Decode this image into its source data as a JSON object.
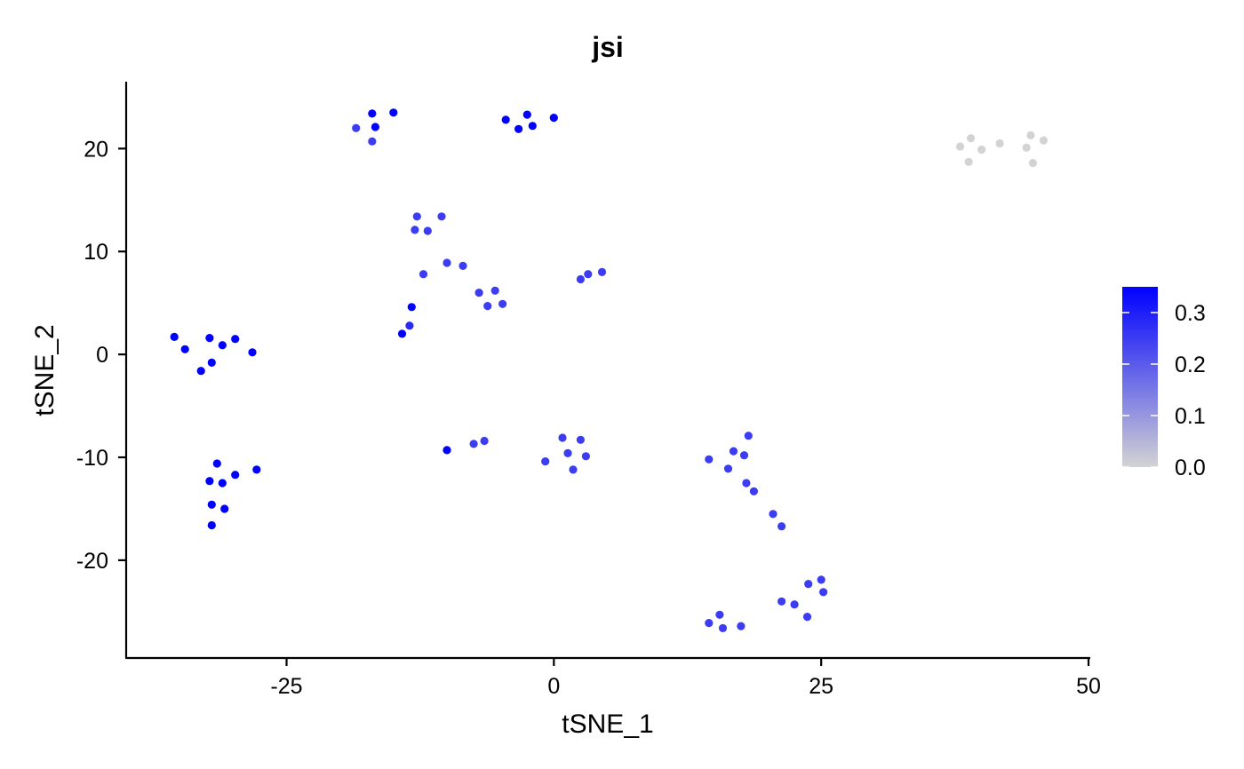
{
  "chart_data": {
    "type": "scatter",
    "title": "jsi",
    "xlabel": "tSNE_1",
    "ylabel": "tSNE_2",
    "xlim": [
      -40,
      50
    ],
    "ylim": [
      -29.5,
      26.5
    ],
    "xticks": [
      -25,
      0,
      25,
      50
    ],
    "yticks": [
      -20,
      -10,
      0,
      10,
      20
    ],
    "xtick_labels": [
      "-25",
      "0",
      "25",
      "50"
    ],
    "ytick_labels": [
      "-20",
      "-10",
      "0",
      "10",
      "20"
    ],
    "grid": false,
    "legend": {
      "placement": "right",
      "type": "colorbar",
      "min": 0.0,
      "max": 0.35,
      "ticks": [
        0.0,
        0.1,
        0.2,
        0.3
      ],
      "tick_labels": [
        "0.0",
        "0.1",
        "0.2",
        "0.3"
      ],
      "low_color": "#d3d3d3",
      "high_color": "#0000ff"
    },
    "points": [
      {
        "x": -18.5,
        "y": 22.0,
        "v": 0.25
      },
      {
        "x": -17.0,
        "y": 23.4,
        "v": 0.35
      },
      {
        "x": -15.0,
        "y": 23.5,
        "v": 0.35
      },
      {
        "x": -16.7,
        "y": 22.1,
        "v": 0.35
      },
      {
        "x": -17.0,
        "y": 20.7,
        "v": 0.25
      },
      {
        "x": -4.5,
        "y": 22.8,
        "v": 0.35
      },
      {
        "x": -2.5,
        "y": 23.3,
        "v": 0.35
      },
      {
        "x": 0.0,
        "y": 23.0,
        "v": 0.35
      },
      {
        "x": -3.3,
        "y": 21.9,
        "v": 0.35
      },
      {
        "x": -2.0,
        "y": 22.2,
        "v": 0.35
      },
      {
        "x": 38.0,
        "y": 20.2,
        "v": 0.0
      },
      {
        "x": 39.0,
        "y": 21.0,
        "v": 0.0
      },
      {
        "x": 40.0,
        "y": 19.9,
        "v": 0.0
      },
      {
        "x": 41.7,
        "y": 20.5,
        "v": 0.0
      },
      {
        "x": 38.8,
        "y": 18.7,
        "v": 0.0
      },
      {
        "x": 44.2,
        "y": 20.1,
        "v": 0.0
      },
      {
        "x": 44.6,
        "y": 21.3,
        "v": 0.0
      },
      {
        "x": 45.8,
        "y": 20.8,
        "v": 0.0
      },
      {
        "x": 44.8,
        "y": 18.6,
        "v": 0.0
      },
      {
        "x": -12.8,
        "y": 13.4,
        "v": 0.25
      },
      {
        "x": -10.5,
        "y": 13.4,
        "v": 0.25
      },
      {
        "x": -13.0,
        "y": 12.1,
        "v": 0.25
      },
      {
        "x": -11.8,
        "y": 12.0,
        "v": 0.25
      },
      {
        "x": -10.0,
        "y": 8.9,
        "v": 0.25
      },
      {
        "x": -8.5,
        "y": 8.6,
        "v": 0.25
      },
      {
        "x": -12.2,
        "y": 7.8,
        "v": 0.25
      },
      {
        "x": -7.0,
        "y": 6.0,
        "v": 0.25
      },
      {
        "x": -5.5,
        "y": 6.2,
        "v": 0.25
      },
      {
        "x": -6.2,
        "y": 4.7,
        "v": 0.25
      },
      {
        "x": -4.8,
        "y": 4.9,
        "v": 0.25
      },
      {
        "x": 2.5,
        "y": 7.3,
        "v": 0.25
      },
      {
        "x": 3.2,
        "y": 7.8,
        "v": 0.25
      },
      {
        "x": 4.5,
        "y": 8.0,
        "v": 0.25
      },
      {
        "x": -13.3,
        "y": 4.6,
        "v": 0.35
      },
      {
        "x": -13.5,
        "y": 2.8,
        "v": 0.28
      },
      {
        "x": -14.2,
        "y": 2.0,
        "v": 0.35
      },
      {
        "x": -35.5,
        "y": 1.7,
        "v": 0.35
      },
      {
        "x": -34.5,
        "y": 0.5,
        "v": 0.35
      },
      {
        "x": -32.2,
        "y": 1.6,
        "v": 0.35
      },
      {
        "x": -31.0,
        "y": 0.9,
        "v": 0.35
      },
      {
        "x": -29.8,
        "y": 1.5,
        "v": 0.35
      },
      {
        "x": -28.2,
        "y": 0.2,
        "v": 0.35
      },
      {
        "x": -33.0,
        "y": -1.6,
        "v": 0.35
      },
      {
        "x": -32.0,
        "y": -0.8,
        "v": 0.35
      },
      {
        "x": -31.5,
        "y": -10.6,
        "v": 0.35
      },
      {
        "x": -27.8,
        "y": -11.2,
        "v": 0.35
      },
      {
        "x": -32.2,
        "y": -12.3,
        "v": 0.35
      },
      {
        "x": -31.0,
        "y": -12.5,
        "v": 0.35
      },
      {
        "x": -29.8,
        "y": -11.7,
        "v": 0.35
      },
      {
        "x": -32.0,
        "y": -14.6,
        "v": 0.35
      },
      {
        "x": -30.8,
        "y": -15.0,
        "v": 0.35
      },
      {
        "x": -32.0,
        "y": -16.6,
        "v": 0.35
      },
      {
        "x": -10.0,
        "y": -9.3,
        "v": 0.35
      },
      {
        "x": -7.5,
        "y": -8.7,
        "v": 0.25
      },
      {
        "x": -6.5,
        "y": -8.4,
        "v": 0.25
      },
      {
        "x": -0.8,
        "y": -10.4,
        "v": 0.25
      },
      {
        "x": 0.8,
        "y": -8.1,
        "v": 0.25
      },
      {
        "x": 2.5,
        "y": -8.3,
        "v": 0.25
      },
      {
        "x": 1.3,
        "y": -9.6,
        "v": 0.25
      },
      {
        "x": 3.0,
        "y": -9.9,
        "v": 0.25
      },
      {
        "x": 1.8,
        "y": -11.2,
        "v": 0.25
      },
      {
        "x": 14.5,
        "y": -10.2,
        "v": 0.25
      },
      {
        "x": 16.3,
        "y": -11.1,
        "v": 0.25
      },
      {
        "x": 16.8,
        "y": -9.4,
        "v": 0.25
      },
      {
        "x": 17.8,
        "y": -9.8,
        "v": 0.25
      },
      {
        "x": 18.2,
        "y": -7.9,
        "v": 0.25
      },
      {
        "x": 18.0,
        "y": -12.5,
        "v": 0.25
      },
      {
        "x": 18.7,
        "y": -13.3,
        "v": 0.25
      },
      {
        "x": 20.5,
        "y": -15.5,
        "v": 0.25
      },
      {
        "x": 21.3,
        "y": -16.7,
        "v": 0.25
      },
      {
        "x": 23.8,
        "y": -22.3,
        "v": 0.25
      },
      {
        "x": 25.0,
        "y": -21.9,
        "v": 0.25
      },
      {
        "x": 25.2,
        "y": -23.1,
        "v": 0.25
      },
      {
        "x": 21.3,
        "y": -24.0,
        "v": 0.25
      },
      {
        "x": 22.5,
        "y": -24.3,
        "v": 0.25
      },
      {
        "x": 23.7,
        "y": -25.5,
        "v": 0.25
      },
      {
        "x": 14.5,
        "y": -26.1,
        "v": 0.25
      },
      {
        "x": 15.5,
        "y": -25.3,
        "v": 0.25
      },
      {
        "x": 15.8,
        "y": -26.6,
        "v": 0.25
      },
      {
        "x": 17.5,
        "y": -26.4,
        "v": 0.25
      }
    ]
  }
}
